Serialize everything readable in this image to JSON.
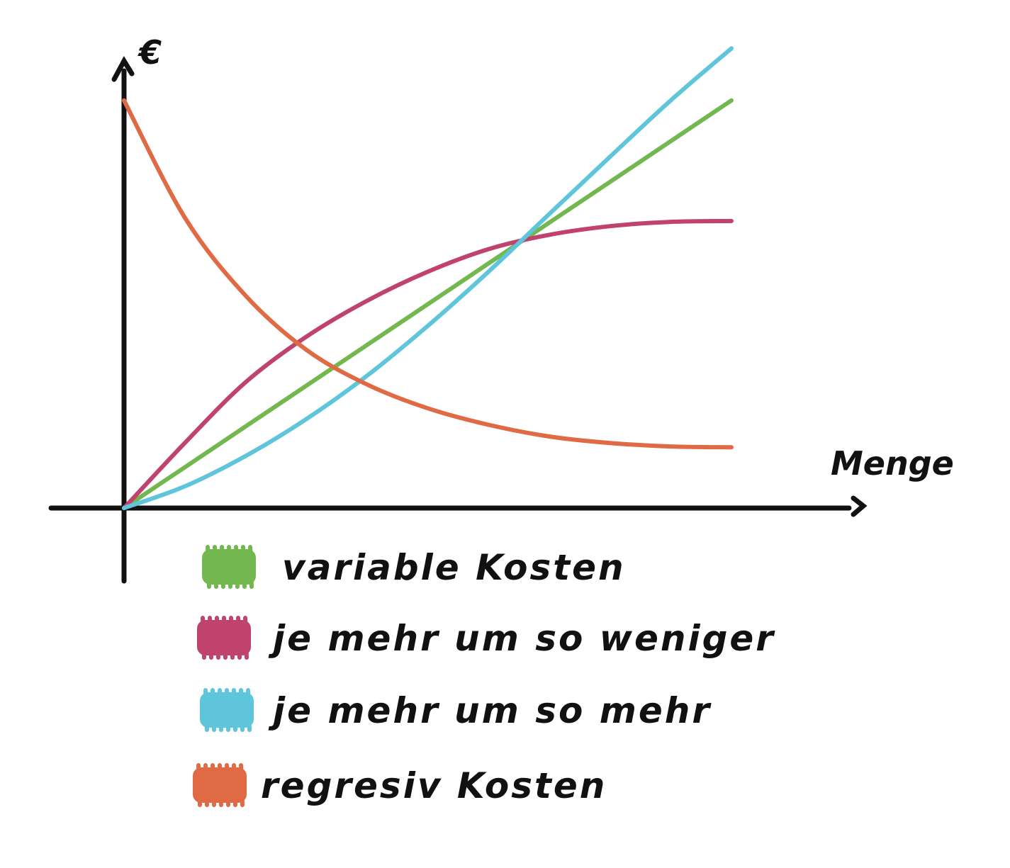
{
  "chart_data": {
    "type": "line",
    "ylabel": "€",
    "xlabel": "Menge",
    "xlim": [
      0,
      10
    ],
    "ylim": [
      0,
      10
    ],
    "grid": false,
    "legend_placement": "bottom-left",
    "series": [
      {
        "name": "variable Kosten",
        "color": "#72b84f",
        "x": [
          0,
          1,
          2,
          3,
          4,
          5,
          6,
          7,
          8,
          9,
          10
        ],
        "y": [
          0,
          0.94,
          1.88,
          2.82,
          3.76,
          4.7,
          5.64,
          6.58,
          7.52,
          8.46,
          9.4
        ]
      },
      {
        "name": "je mehr um so weniger",
        "color": "#c0436e",
        "x": [
          0,
          1,
          2,
          3,
          4,
          5,
          6,
          7,
          8,
          9,
          10
        ],
        "y": [
          0,
          1.5,
          2.9,
          3.95,
          4.78,
          5.45,
          5.97,
          6.3,
          6.5,
          6.6,
          6.62
        ]
      },
      {
        "name": "je mehr um so mehr",
        "color": "#5ec5db",
        "x": [
          0,
          1,
          2,
          3,
          4,
          5,
          6,
          7,
          8,
          9,
          10
        ],
        "y": [
          0,
          0.5,
          1.2,
          2.05,
          3.05,
          4.2,
          5.45,
          6.78,
          8.1,
          9.4,
          10.6
        ]
      },
      {
        "name": "regresiv Kosten",
        "color": "#e06a43",
        "x": [
          0,
          1,
          2,
          3,
          4,
          5,
          6,
          7,
          8,
          9,
          10
        ],
        "y": [
          9.4,
          6.7,
          4.9,
          3.65,
          2.85,
          2.3,
          1.92,
          1.65,
          1.5,
          1.42,
          1.4
        ]
      }
    ]
  }
}
